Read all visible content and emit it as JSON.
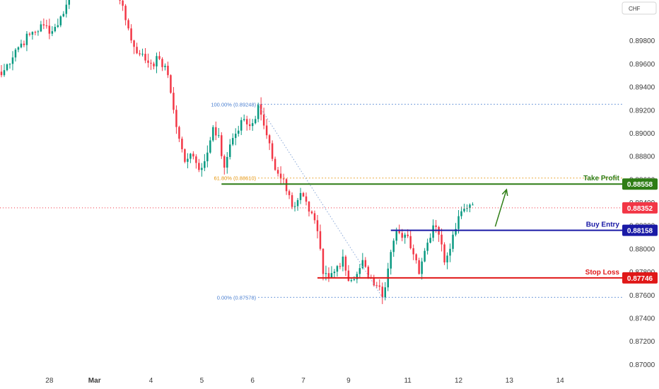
{
  "currency_label": "CHF",
  "chart_data": {
    "type": "candlestick",
    "ylim": [
      0.8695,
      0.9015
    ],
    "xlim": [
      -0.5,
      220.0
    ],
    "price_ticks": [
      "0.87000",
      "0.87200",
      "0.87400",
      "0.87600",
      "0.87800",
      "0.88000",
      "0.88200",
      "0.88400",
      "0.88600",
      "0.88800",
      "0.89000",
      "0.89200",
      "0.89400",
      "0.89600",
      "0.89800"
    ],
    "time_ticks": [
      {
        "label": "28",
        "x": 17
      },
      {
        "label": "Mar",
        "x": 33
      },
      {
        "label": "4",
        "x": 53
      },
      {
        "label": "5",
        "x": 71
      },
      {
        "label": "6",
        "x": 89
      },
      {
        "label": "7",
        "x": 107
      },
      {
        "label": "9",
        "x": 123
      },
      {
        "label": "11",
        "x": 144
      },
      {
        "label": "12",
        "x": 162
      },
      {
        "label": "13",
        "x": 180
      },
      {
        "label": "14",
        "x": 198
      }
    ],
    "fibonacci": [
      {
        "label": "100.00% (0.89248)",
        "level": 0.89248,
        "color": "#4a7fd0",
        "x_start": 91
      },
      {
        "label": "61.80% (0.88610)",
        "level": 0.8861,
        "color": "#e6940a",
        "x_start": 91
      },
      {
        "label": "0.00% (0.87578)",
        "level": 0.87578,
        "color": "#4a7fd0",
        "x_start": 91
      }
    ],
    "fib_trend_line": {
      "from": {
        "x": 91,
        "y": 0.89248
      },
      "to": {
        "x": 135,
        "y": 0.87578
      }
    },
    "levels": [
      {
        "label": "Take Profit",
        "price": 0.88558,
        "price_label": "0.88558",
        "color": "#2e7d15",
        "x_start": 78
      },
      {
        "label": "Buy Entry",
        "price": 0.88158,
        "price_label": "0.88158",
        "color": "#1a1aa6",
        "x_start": 138
      },
      {
        "label": "Stop Loss",
        "price": 0.87746,
        "price_label": "0.87746",
        "color": "#e01818",
        "x_start": 112
      }
    ],
    "current_price": {
      "price": 0.88352,
      "price_label": "0.88352",
      "color": "#f23645"
    },
    "projection_arrow": {
      "from": {
        "x": 175,
        "y": 0.8819
      },
      "to": {
        "x": 179,
        "y": 0.8851
      },
      "color": "#2e7d15"
    },
    "colors": {
      "up": "#089981",
      "down": "#f23645"
    },
    "waypoints": [
      [
        0,
        0.895
      ],
      [
        5,
        0.8972
      ],
      [
        10,
        0.8985
      ],
      [
        15,
        0.8993
      ],
      [
        18,
        0.8988
      ],
      [
        22,
        0.9003
      ],
      [
        24,
        0.9025
      ],
      [
        40,
        0.9025
      ],
      [
        43,
        0.901
      ],
      [
        46,
        0.898
      ],
      [
        49,
        0.8968
      ],
      [
        53,
        0.896
      ],
      [
        56,
        0.8964
      ],
      [
        59,
        0.895
      ],
      [
        61,
        0.892
      ],
      [
        63,
        0.8895
      ],
      [
        65,
        0.8875
      ],
      [
        67,
        0.8882
      ],
      [
        70,
        0.8868
      ],
      [
        73,
        0.8883
      ],
      [
        75,
        0.8905
      ],
      [
        77,
        0.8898
      ],
      [
        79,
        0.887
      ],
      [
        81,
        0.889
      ],
      [
        84,
        0.8902
      ],
      [
        86,
        0.8912
      ],
      [
        88,
        0.8906
      ],
      [
        90,
        0.8912
      ],
      [
        91,
        0.89248
      ],
      [
        94,
        0.8898
      ],
      [
        97,
        0.8868
      ],
      [
        100,
        0.886
      ],
      [
        103,
        0.8836
      ],
      [
        106,
        0.8848
      ],
      [
        109,
        0.8832
      ],
      [
        112,
        0.8815
      ],
      [
        114,
        0.8778
      ],
      [
        116,
        0.8775
      ],
      [
        118,
        0.878
      ],
      [
        121,
        0.8793
      ],
      [
        123,
        0.8772
      ],
      [
        126,
        0.8778
      ],
      [
        128,
        0.879
      ],
      [
        130,
        0.8775
      ],
      [
        133,
        0.8768
      ],
      [
        135,
        0.87578
      ],
      [
        138,
        0.8797
      ],
      [
        140,
        0.8815
      ],
      [
        143,
        0.8812
      ],
      [
        146,
        0.8795
      ],
      [
        148,
        0.8778
      ],
      [
        150,
        0.8798
      ],
      [
        153,
        0.882
      ],
      [
        155,
        0.8812
      ],
      [
        157,
        0.8788
      ],
      [
        160,
        0.8812
      ],
      [
        162,
        0.8828
      ],
      [
        165,
        0.8835
      ],
      [
        167,
        0.8838
      ]
    ]
  }
}
